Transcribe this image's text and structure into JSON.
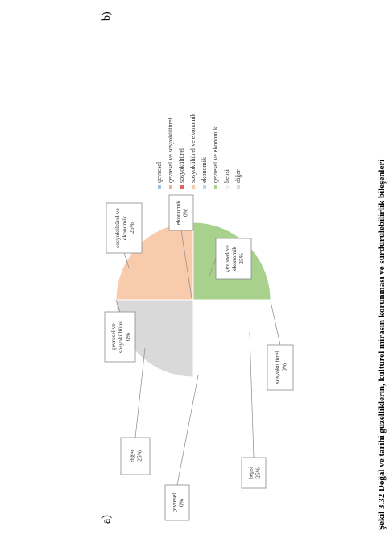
{
  "figure": {
    "panel_a_label": "a)",
    "panel_b_label": "b)",
    "caption": "Şekil 3.32 Doğal ve tarihi güzelliklerin, kültürel mirasın korunması ve sürdürülebilirlik bileşenleri"
  },
  "chart_data": {
    "type": "pie",
    "title": "",
    "categories": [
      "çevresel",
      "çevresel ve sosyokültürel",
      "sosyokültürel",
      "sosyokültürel ve ekonomik",
      "ekonomik",
      "çevresel ve ekonomik",
      "hepsi",
      "diğer"
    ],
    "values": [
      0,
      0,
      0,
      25,
      0,
      25,
      25,
      25
    ],
    "labels": [
      [
        "çevresel",
        "0%"
      ],
      [
        "çevresel ve",
        "sosyokültürel",
        "0%"
      ],
      [
        "sosyokültürel",
        "0%"
      ],
      [
        "sosyokültürel ve",
        "ekonomik",
        "25%"
      ],
      [
        "ekonomik",
        "0%"
      ],
      [
        "çevresel ve",
        "ekonomik",
        "25%"
      ],
      [
        "hepsi",
        "25%"
      ],
      [
        "diğer",
        "25%"
      ]
    ],
    "colors": [
      "#9DC3E6",
      "#F4B183",
      "#E06666",
      "#F8CBAD",
      "#BDD7EE",
      "#A9D18E",
      "#FFFFFF",
      "#D9D9D9"
    ],
    "legend": {
      "position": "right",
      "entries": [
        "çevresel",
        "çevresel ve sosyokültürel",
        "sosyokültürel",
        "sosyokültürel ve ekonomik",
        "ekonomik",
        "çevresel ve ekonomik",
        "hepsi",
        "diğer"
      ]
    }
  }
}
